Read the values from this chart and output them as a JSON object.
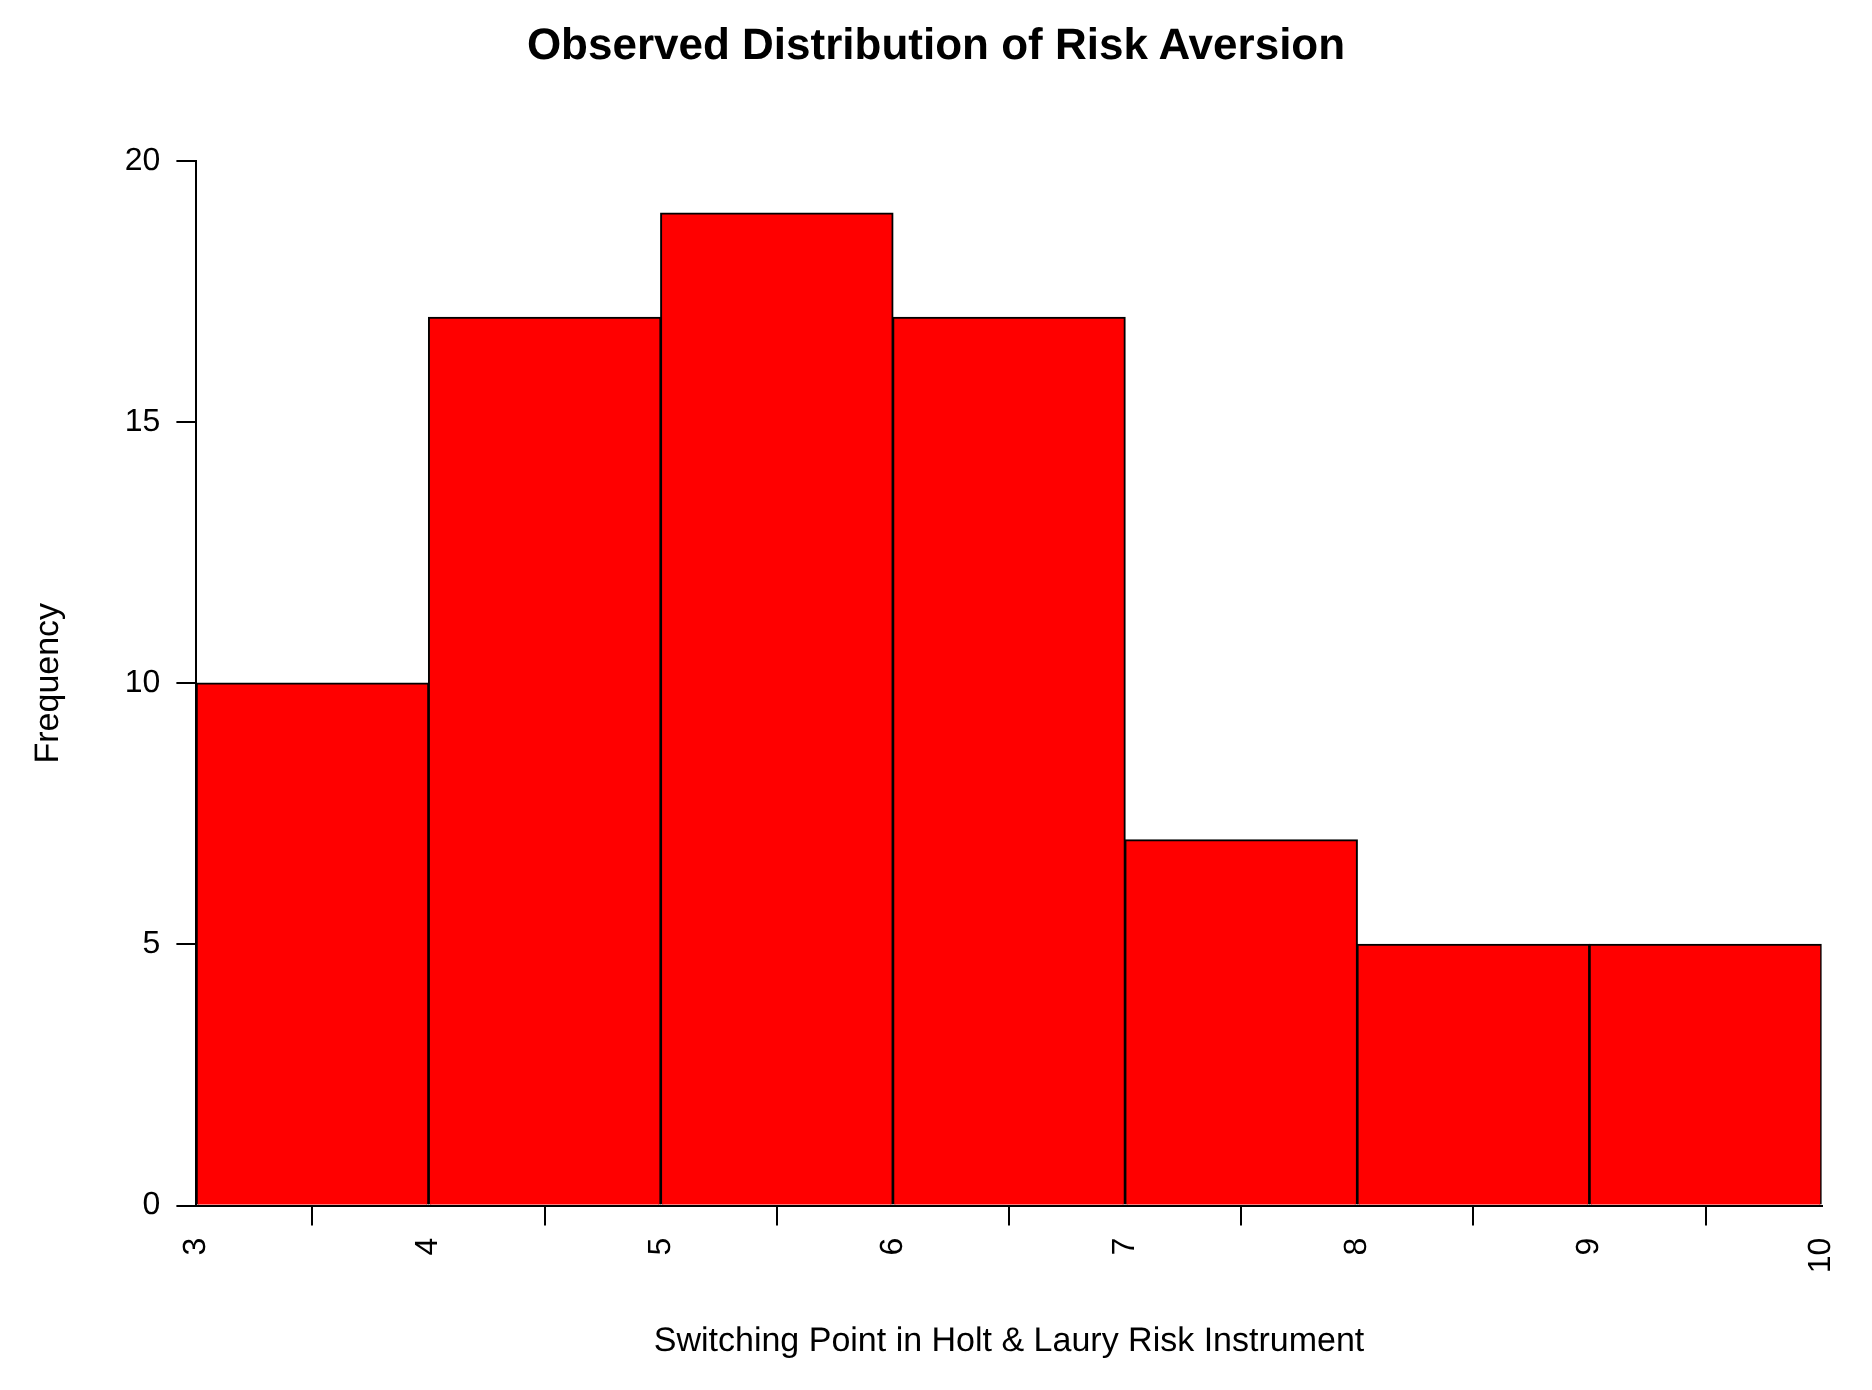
{
  "chart_data": {
    "type": "histogram",
    "title": "Observed Distribution of Risk Aversion",
    "xlabel": "Switching Point in Holt & Laury Risk Instrument",
    "ylabel": "Frequency",
    "bins": [
      3,
      4,
      5,
      6,
      7,
      8,
      9,
      10
    ],
    "values": [
      10,
      17,
      19,
      17,
      7,
      5,
      5
    ],
    "color": "#ff0000",
    "xlim": [
      3,
      10
    ],
    "xticks": [
      3,
      4,
      5,
      6,
      7,
      8,
      9,
      10
    ],
    "ylim": [
      0,
      20
    ],
    "yticks": [
      0,
      5,
      10,
      15,
      20
    ]
  }
}
